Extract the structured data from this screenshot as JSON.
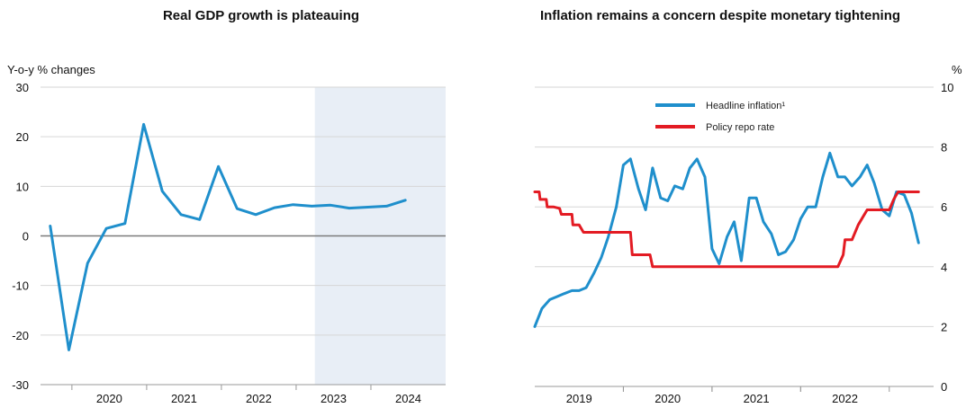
{
  "chart_data": [
    {
      "type": "line",
      "title": "Real GDP growth is plateauing",
      "ylabel": "Y-o-y % changes",
      "ylim": [
        -30,
        30
      ],
      "yticks": [
        30,
        20,
        10,
        0,
        -10,
        -20,
        -30
      ],
      "xlim": [
        2019.58,
        2025.0
      ],
      "xtick_labels": [
        "2020",
        "2021",
        "2022",
        "2023",
        "2024"
      ],
      "xtick_positions": [
        2020.5,
        2021.5,
        2022.5,
        2023.5,
        2024.5
      ],
      "shaded_region": [
        2023.25,
        2025.0
      ],
      "zero_line": true,
      "series": [
        {
          "color": "#1f8fcc",
          "points": [
            [
              2019.71,
              2.0
            ],
            [
              2019.96,
              -23.0
            ],
            [
              2020.21,
              -5.5
            ],
            [
              2020.46,
              1.5
            ],
            [
              2020.71,
              2.5
            ],
            [
              2020.96,
              22.5
            ],
            [
              2021.21,
              9.0
            ],
            [
              2021.46,
              4.3
            ],
            [
              2021.71,
              3.3
            ],
            [
              2021.96,
              14.0
            ],
            [
              2022.21,
              5.5
            ],
            [
              2022.46,
              4.3
            ],
            [
              2022.71,
              5.7
            ],
            [
              2022.96,
              6.3
            ],
            [
              2023.21,
              6.0
            ],
            [
              2023.46,
              6.2
            ],
            [
              2023.71,
              5.6
            ],
            [
              2023.96,
              5.8
            ],
            [
              2024.21,
              6.0
            ],
            [
              2024.46,
              7.2
            ]
          ]
        }
      ]
    },
    {
      "type": "line",
      "title": "Inflation remains a concern despite monetary tightening",
      "yunit": "%",
      "ylim": [
        0,
        10
      ],
      "yticks": [
        10,
        8,
        6,
        4,
        2,
        0
      ],
      "xlim": [
        2018.5,
        2023.0
      ],
      "xtick_labels": [
        "2019",
        "2020",
        "2021",
        "2022"
      ],
      "xtick_positions": [
        2019.0,
        2020.0,
        2021.0,
        2022.0
      ],
      "legend": {
        "placement": "top-center"
      },
      "series": [
        {
          "name": "Headline inflation¹",
          "color": "#1f8fcc",
          "points": [
            [
              2018.5,
              2.0
            ],
            [
              2018.58,
              2.6
            ],
            [
              2018.67,
              2.9
            ],
            [
              2018.75,
              3.0
            ],
            [
              2018.83,
              3.1
            ],
            [
              2018.92,
              3.2
            ],
            [
              2019.0,
              3.2
            ],
            [
              2019.08,
              3.3
            ],
            [
              2019.17,
              3.8
            ],
            [
              2019.25,
              4.3
            ],
            [
              2019.33,
              5.0
            ],
            [
              2019.42,
              6.0
            ],
            [
              2019.5,
              7.4
            ],
            [
              2019.58,
              7.6
            ],
            [
              2019.67,
              6.6
            ],
            [
              2019.75,
              5.9
            ],
            [
              2019.83,
              7.3
            ],
            [
              2019.92,
              6.3
            ],
            [
              2020.0,
              6.2
            ],
            [
              2020.08,
              6.7
            ],
            [
              2020.17,
              6.6
            ],
            [
              2020.25,
              7.3
            ],
            [
              2020.33,
              7.6
            ],
            [
              2020.42,
              7.0
            ],
            [
              2020.5,
              4.6
            ],
            [
              2020.58,
              4.1
            ],
            [
              2020.67,
              5.0
            ],
            [
              2020.75,
              5.5
            ],
            [
              2020.83,
              4.2
            ],
            [
              2020.92,
              6.3
            ],
            [
              2021.0,
              6.3
            ],
            [
              2021.08,
              5.5
            ],
            [
              2021.17,
              5.1
            ],
            [
              2021.25,
              4.4
            ],
            [
              2021.33,
              4.5
            ],
            [
              2021.42,
              4.9
            ],
            [
              2021.5,
              5.6
            ],
            [
              2021.58,
              6.0
            ],
            [
              2021.67,
              6.0
            ],
            [
              2021.75,
              7.0
            ],
            [
              2021.83,
              7.8
            ],
            [
              2021.92,
              7.0
            ],
            [
              2022.0,
              7.0
            ],
            [
              2022.08,
              6.7
            ],
            [
              2022.17,
              7.0
            ],
            [
              2022.25,
              7.4
            ],
            [
              2022.33,
              6.8
            ],
            [
              2022.42,
              5.9
            ],
            [
              2022.5,
              5.7
            ],
            [
              2022.58,
              6.5
            ],
            [
              2022.67,
              6.4
            ],
            [
              2022.75,
              5.8
            ],
            [
              2022.83,
              4.8
            ]
          ]
        },
        {
          "name": "Policy repo rate",
          "color": "#e31b23",
          "points": [
            [
              2018.5,
              6.5
            ],
            [
              2018.55,
              6.5
            ],
            [
              2018.56,
              6.25
            ],
            [
              2018.63,
              6.25
            ],
            [
              2018.64,
              6.0
            ],
            [
              2018.7,
              6.0
            ],
            [
              2018.71,
              6.0
            ],
            [
              2018.78,
              5.95
            ],
            [
              2018.8,
              5.75
            ],
            [
              2018.92,
              5.75
            ],
            [
              2018.93,
              5.4
            ],
            [
              2019.0,
              5.4
            ],
            [
              2019.05,
              5.15
            ],
            [
              2019.58,
              5.15
            ],
            [
              2019.6,
              4.4
            ],
            [
              2019.8,
              4.4
            ],
            [
              2019.83,
              4.0
            ],
            [
              2021.92,
              4.0
            ],
            [
              2021.98,
              4.4
            ],
            [
              2022.0,
              4.9
            ],
            [
              2022.08,
              4.9
            ],
            [
              2022.15,
              5.4
            ],
            [
              2022.25,
              5.9
            ],
            [
              2022.5,
              5.9
            ],
            [
              2022.55,
              6.25
            ],
            [
              2022.6,
              6.5
            ],
            [
              2022.83,
              6.5
            ]
          ]
        }
      ]
    }
  ]
}
